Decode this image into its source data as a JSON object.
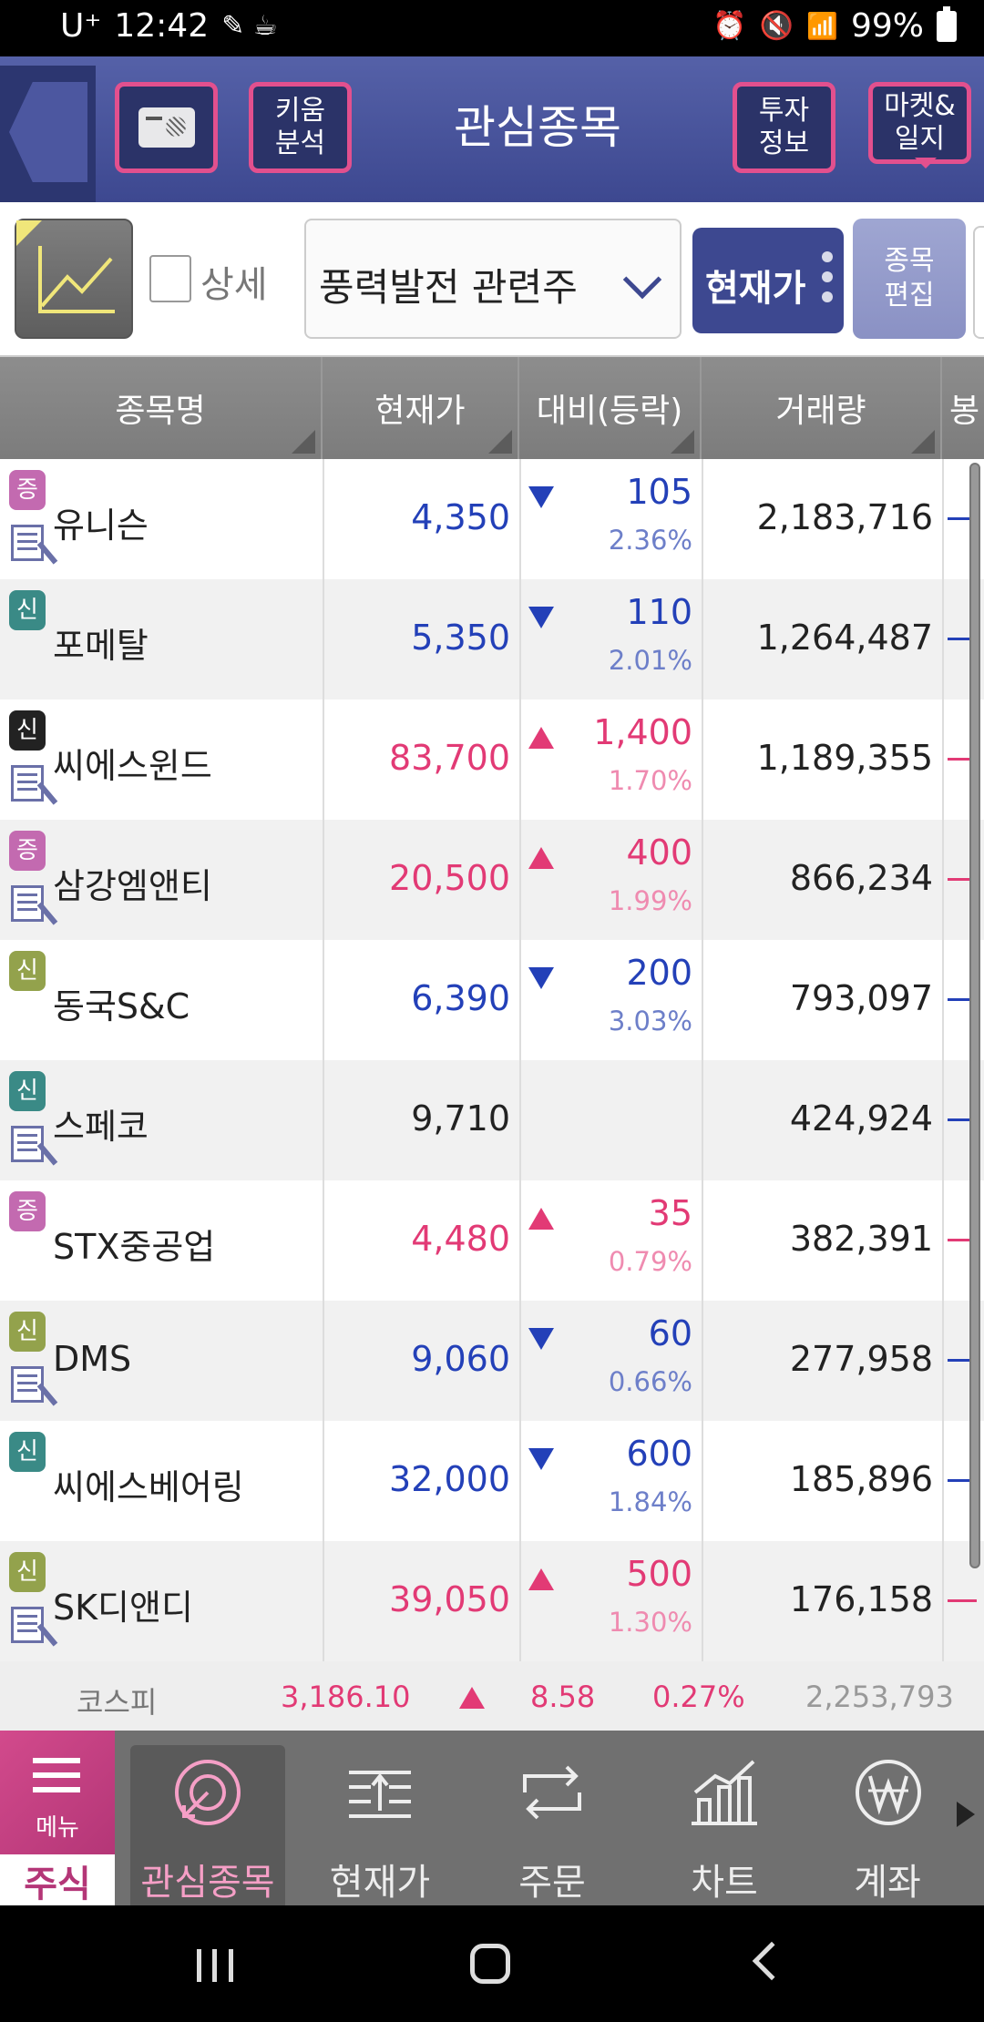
{
  "status": {
    "carrier": "U⁺",
    "time": "12:42",
    "battery": "99%"
  },
  "header": {
    "kiwoom_label": "키움\n분석",
    "title": "관심종목",
    "invest_label": "투자\n정보",
    "market_label": "마켓&\n일지"
  },
  "toolbar": {
    "detail_label": "상세",
    "group_selected": "풍력발전 관련주",
    "price_button": "현재가",
    "edit_label": "종목\n편집"
  },
  "columns": [
    "종목명",
    "현재가",
    "대비(등락)",
    "거래량",
    "봉"
  ],
  "rows": [
    {
      "badge": "증",
      "badge_color": "#c36ab0",
      "news": true,
      "name": "유니슨",
      "price": "4,350",
      "dir": "down",
      "diff": "105",
      "pct": "2.36%",
      "volume": "2,183,716"
    },
    {
      "badge": "신",
      "badge_color": "#3a8a86",
      "news": false,
      "name": "포메탈",
      "price": "5,350",
      "dir": "down",
      "diff": "110",
      "pct": "2.01%",
      "volume": "1,264,487"
    },
    {
      "badge": "신",
      "badge_color": "#222222",
      "news": true,
      "name": "씨에스윈드",
      "price": "83,700",
      "dir": "up",
      "diff": "1,400",
      "pct": "1.70%",
      "volume": "1,189,355"
    },
    {
      "badge": "증",
      "badge_color": "#c36ab0",
      "news": true,
      "name": "삼강엠앤티",
      "price": "20,500",
      "dir": "up",
      "diff": "400",
      "pct": "1.99%",
      "volume": "866,234"
    },
    {
      "badge": "신",
      "badge_color": "#93a24c",
      "news": false,
      "name": "동국S&C",
      "price": "6,390",
      "dir": "down",
      "diff": "200",
      "pct": "3.03%",
      "volume": "793,097"
    },
    {
      "badge": "신",
      "badge_color": "#3a8a86",
      "news": true,
      "name": "스페코",
      "price": "9,710",
      "dir": "flat",
      "diff": "",
      "pct": "",
      "volume": "424,924"
    },
    {
      "badge": "증",
      "badge_color": "#c36ab0",
      "news": false,
      "name": "STX중공업",
      "price": "4,480",
      "dir": "up",
      "diff": "35",
      "pct": "0.79%",
      "volume": "382,391"
    },
    {
      "badge": "신",
      "badge_color": "#93a24c",
      "news": true,
      "name": "DMS",
      "price": "9,060",
      "dir": "down",
      "diff": "60",
      "pct": "0.66%",
      "volume": "277,958"
    },
    {
      "badge": "신",
      "badge_color": "#3a8a86",
      "news": false,
      "name": "씨에스베어링",
      "price": "32,000",
      "dir": "down",
      "diff": "600",
      "pct": "1.84%",
      "volume": "185,896"
    },
    {
      "badge": "신",
      "badge_color": "#93a24c",
      "news": true,
      "name": "SK디앤디",
      "price": "39,050",
      "dir": "up",
      "diff": "500",
      "pct": "1.30%",
      "volume": "176,158"
    }
  ],
  "index_strip": {
    "name": "코스피",
    "value": "3,186.10",
    "change": "8.58",
    "pct": "0.27%",
    "volume": "2,253,793"
  },
  "bottom_nav": {
    "menu_label": "메뉴",
    "stock_tab": "주식",
    "items": [
      "관심종목",
      "현재가",
      "주문",
      "차트",
      "계좌"
    ],
    "active": "관심종목"
  },
  "colors": {
    "header_blue": "#3d4890",
    "accent_pink": "#e2508e",
    "up_red": "#e23a75",
    "down_blue": "#2340b8"
  }
}
